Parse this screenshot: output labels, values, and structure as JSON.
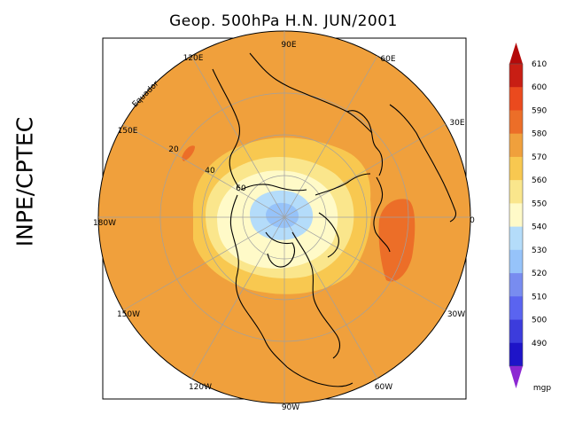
{
  "title": "Geop. 500hPa H.N. JUN/2001",
  "side_label": "INPE/CPTEC",
  "longitude_labels": [
    "90E",
    "60E",
    "30E",
    "0",
    "30W",
    "60W",
    "90W",
    "120W",
    "150W",
    "180W",
    "150E",
    "120E"
  ],
  "latitude_labels": [
    "20",
    "40",
    "60"
  ],
  "equator_label": "Equador",
  "colorbar": {
    "unit": "mgp",
    "levels": [
      "610",
      "600",
      "590",
      "580",
      "570",
      "560",
      "550",
      "540",
      "530",
      "520",
      "510",
      "500",
      "490"
    ],
    "colors": [
      "#c81e14",
      "#ea4a1e",
      "#ec6e28",
      "#f0a03c",
      "#f8c850",
      "#fae68c",
      "#fffac8",
      "#b4dcfa",
      "#96c3fa",
      "#788cf0",
      "#5a64f0",
      "#3c3cdc",
      "#1e14c8"
    ],
    "top_arrow_color": "#b40a0a",
    "bottom_arrow_color": "#8c28d2"
  },
  "map_colors": {
    "ocean_orange": "#f0a03c",
    "low_band": "#fae68c",
    "pale_band": "#fffac8",
    "polar_low": "#b4dcfa",
    "polar_core": "#96c3fa",
    "high_cell": "#ec6e28"
  }
}
